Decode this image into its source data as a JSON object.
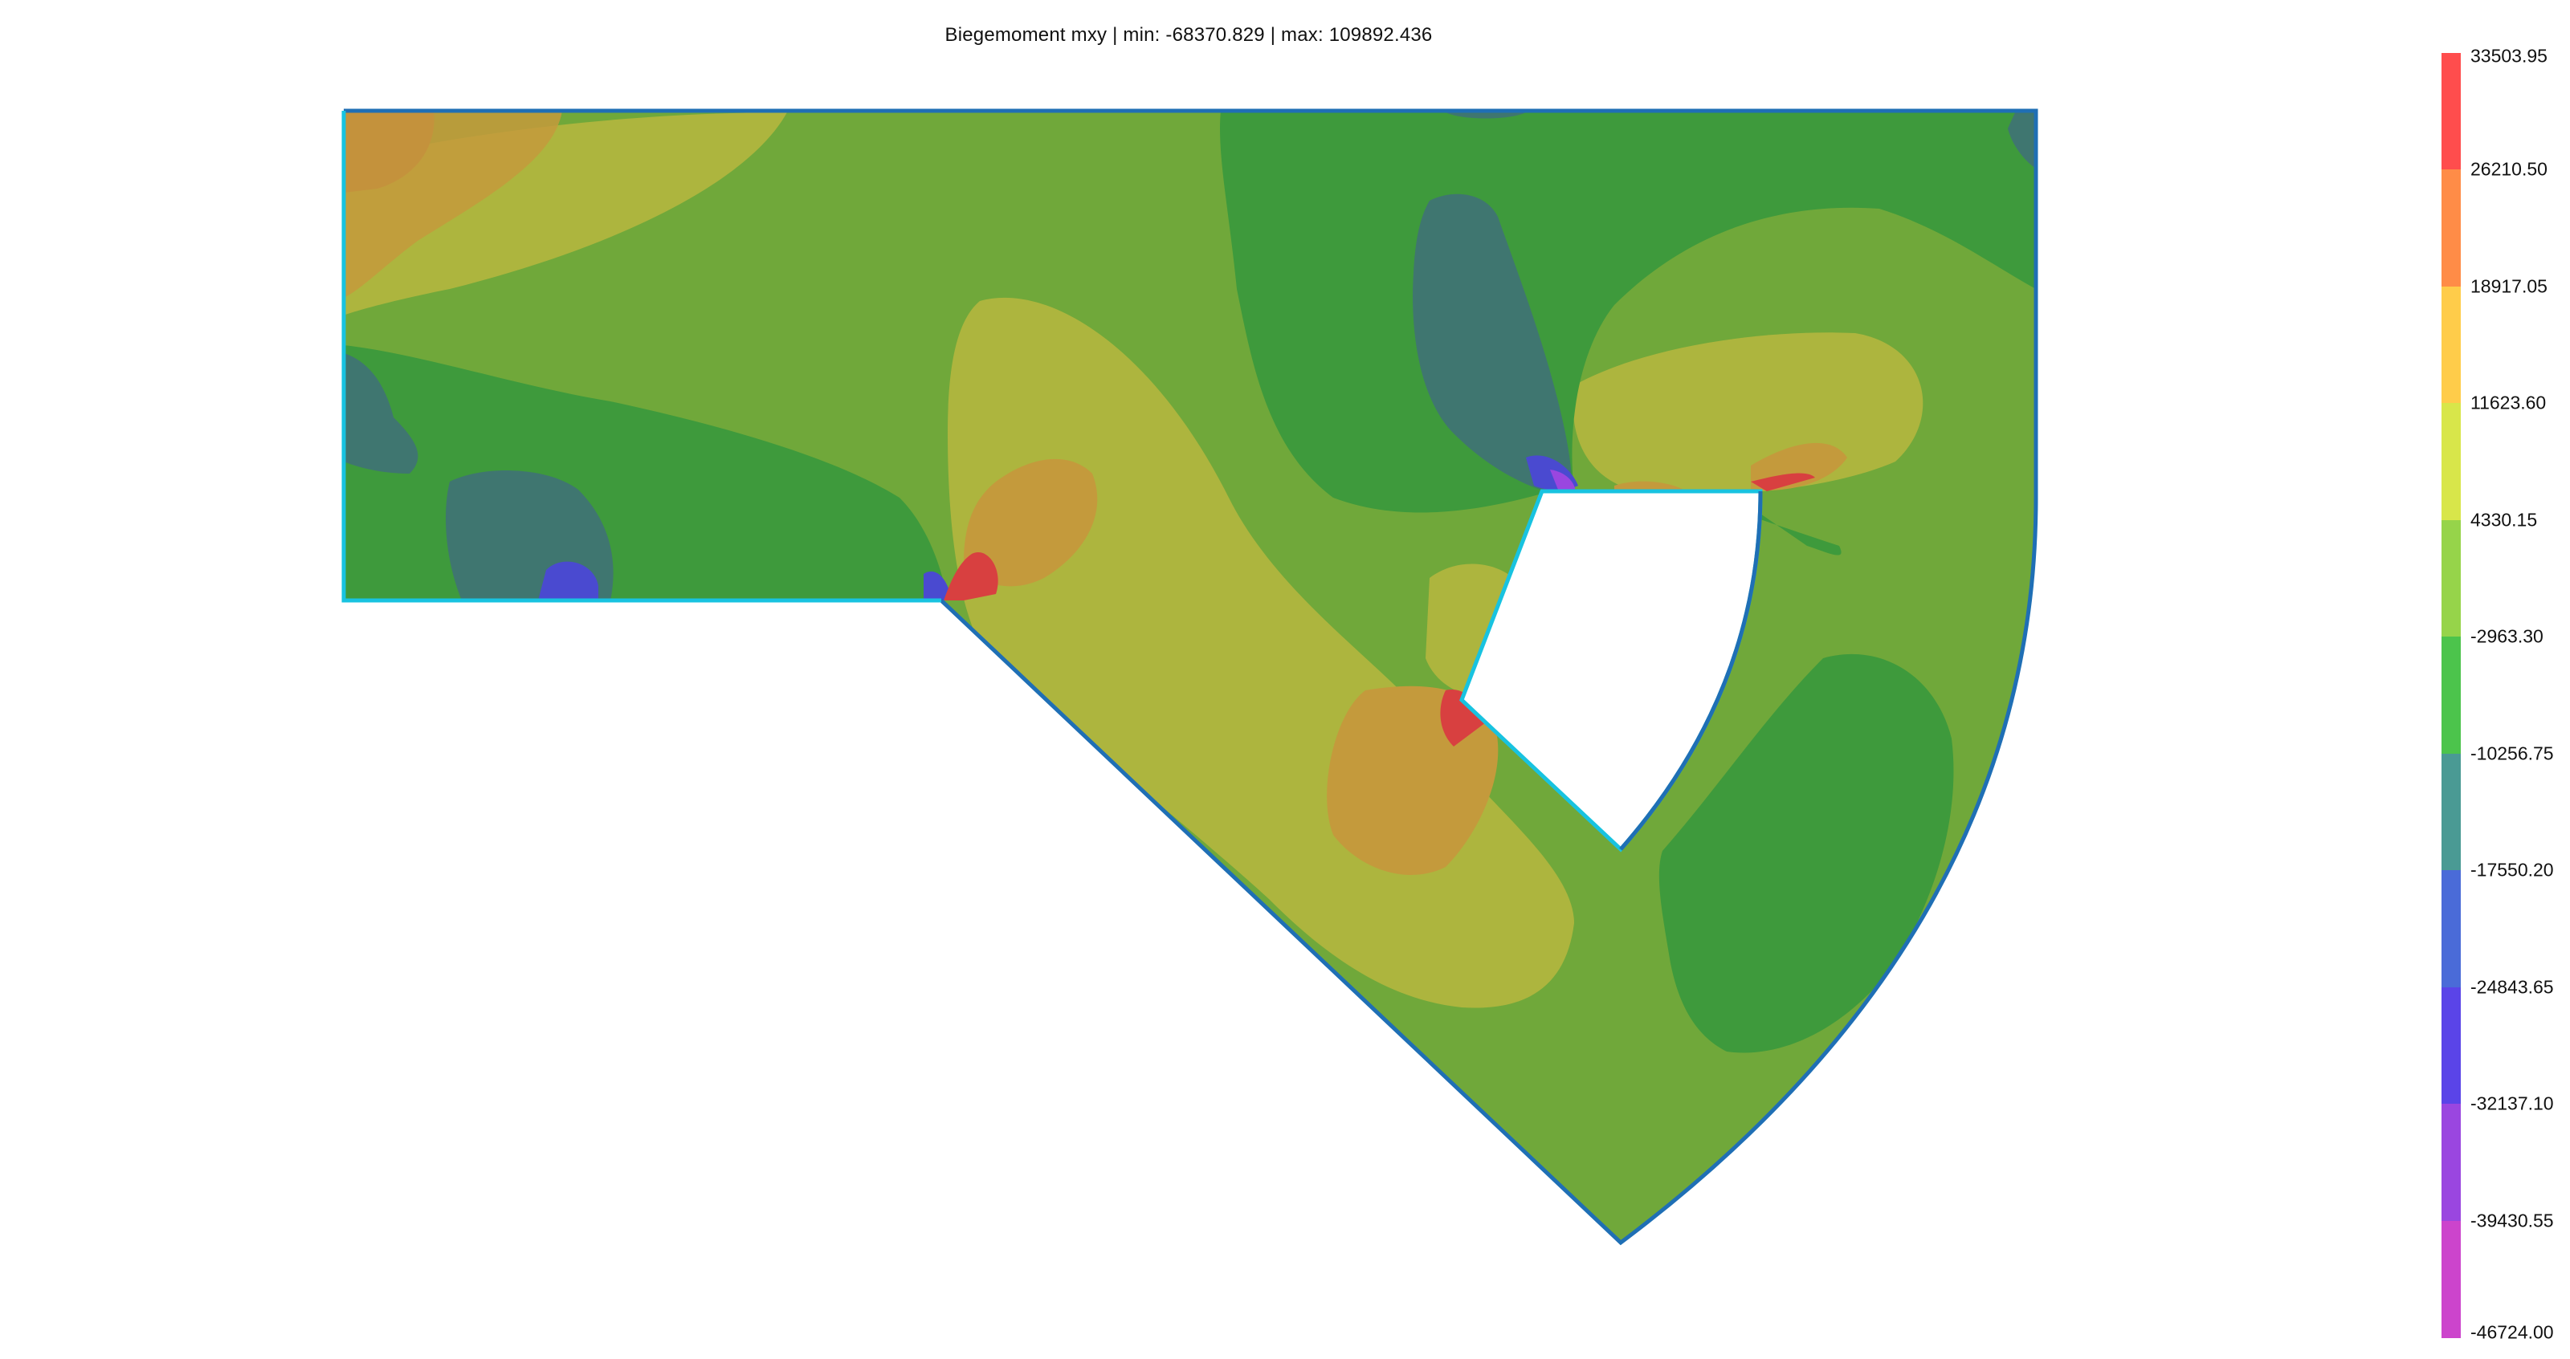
{
  "plot": {
    "title": "Biegemoment mxy | min: -68370.829 | max: 109892.436",
    "boundary_color": "#1f6fb5",
    "support_edge_color": "#18c3e0"
  },
  "legend": {
    "labels": [
      "33503.95",
      "26210.50",
      "18917.05",
      "11623.60",
      "4330.15",
      "-2963.30",
      "-10256.75",
      "-17550.20",
      "-24843.65",
      "-32137.10",
      "-39430.55",
      "-46724.00"
    ],
    "colors": [
      "#ff4d4d",
      "#ff8c47",
      "#ffcc4a",
      "#d8e64a",
      "#96d44a",
      "#4cc44c",
      "#4a9a94",
      "#4a6bd8",
      "#5a44e8",
      "#9a46e0",
      "#cc44cc"
    ]
  }
}
